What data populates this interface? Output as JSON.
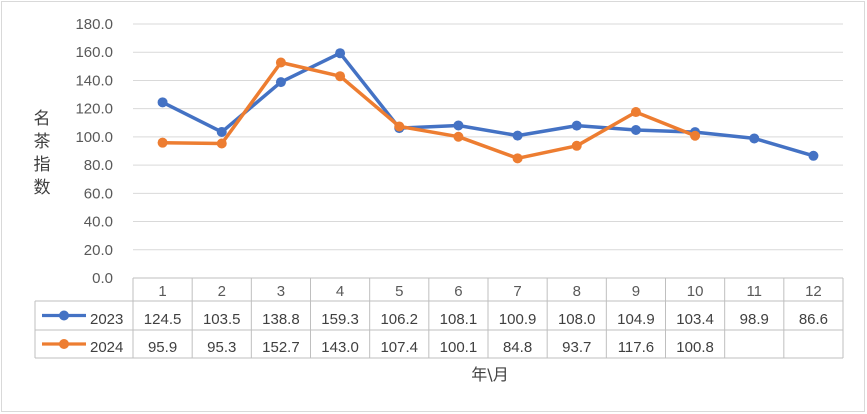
{
  "chart_data": {
    "type": "line",
    "title": "",
    "xlabel": "年\\月",
    "ylabel": "名茶指数",
    "ylim": [
      0,
      180
    ],
    "yticks": [
      "0.0",
      "20.0",
      "40.0",
      "60.0",
      "80.0",
      "100.0",
      "120.0",
      "140.0",
      "160.0",
      "180.0"
    ],
    "categories": [
      "1",
      "2",
      "3",
      "4",
      "5",
      "6",
      "7",
      "8",
      "9",
      "10",
      "11",
      "12"
    ],
    "grid": true,
    "legend": "data-table",
    "series": [
      {
        "name": "2023",
        "color": "#4472C4",
        "values": [
          124.5,
          103.5,
          138.8,
          159.3,
          106.2,
          108.1,
          100.9,
          108.0,
          104.9,
          103.4,
          98.9,
          86.6
        ],
        "labels": [
          "124.5",
          "103.5",
          "138.8",
          "159.3",
          "106.2",
          "108.1",
          "100.9",
          "108.0",
          "104.9",
          "103.4",
          "98.9",
          "86.6"
        ]
      },
      {
        "name": "2024",
        "color": "#ED7D31",
        "values": [
          95.9,
          95.3,
          152.7,
          143.0,
          107.4,
          100.1,
          84.8,
          93.7,
          117.6,
          100.8,
          null,
          null
        ],
        "labels": [
          "95.9",
          "95.3",
          "152.7",
          "143.0",
          "107.4",
          "100.1",
          "84.8",
          "93.7",
          "117.6",
          "100.8",
          "",
          ""
        ]
      }
    ]
  }
}
